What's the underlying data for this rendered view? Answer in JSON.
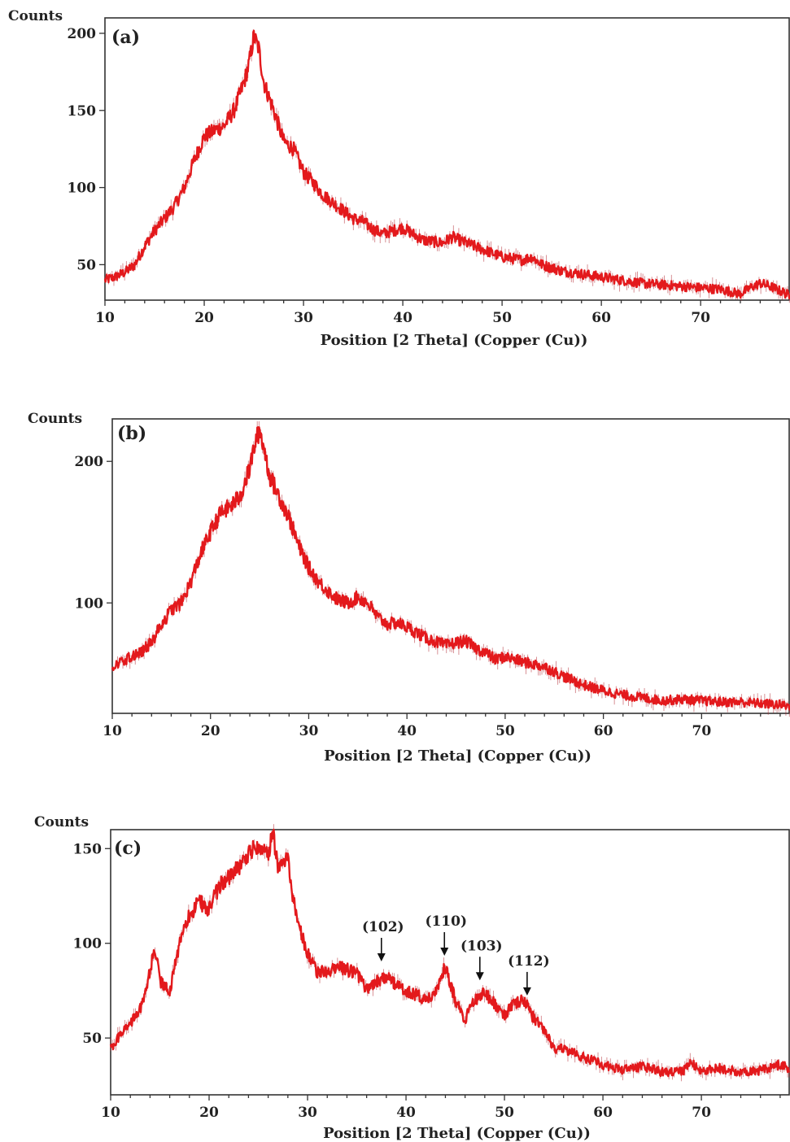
{
  "chart_data": [
    {
      "type": "line",
      "panel_label": "(a)",
      "ylabel": "Counts",
      "xlabel": "Position [2 Theta] (Copper (Cu))",
      "xlim": [
        10,
        79
      ],
      "ylim": [
        27,
        210
      ],
      "xticks": [
        10,
        20,
        30,
        40,
        50,
        60,
        70
      ],
      "yticks": [
        50,
        100,
        150,
        200
      ],
      "series": [
        {
          "x": [
            10,
            11,
            12,
            13,
            14,
            15,
            16,
            17,
            18,
            19,
            20,
            21,
            22,
            23,
            24,
            24.5,
            25,
            25.5,
            26,
            27,
            28,
            29,
            30,
            31,
            32,
            33,
            34,
            35,
            36,
            37,
            38,
            39,
            40,
            42,
            44,
            45,
            46,
            48,
            50,
            52,
            53,
            54,
            56,
            58,
            60,
            62,
            64,
            66,
            68,
            70,
            72,
            74,
            75,
            76,
            77,
            78,
            79
          ],
          "y": [
            40,
            42,
            45,
            50,
            62,
            72,
            80,
            88,
            100,
            118,
            133,
            137,
            140,
            150,
            168,
            180,
            198,
            190,
            168,
            150,
            130,
            125,
            110,
            103,
            95,
            90,
            85,
            80,
            78,
            73,
            70,
            72,
            74,
            66,
            64,
            68,
            65,
            60,
            55,
            53,
            55,
            50,
            46,
            44,
            42,
            40,
            38,
            37,
            36,
            35,
            34,
            31,
            35,
            38,
            36,
            33,
            30
          ]
        }
      ]
    },
    {
      "type": "line",
      "panel_label": "(b)",
      "ylabel": "Counts",
      "xlabel": "Position [2 Theta] (Copper (Cu))",
      "xlim": [
        10,
        79
      ],
      "ylim": [
        22,
        230
      ],
      "xticks": [
        10,
        20,
        30,
        40,
        50,
        60,
        70
      ],
      "yticks": [
        100,
        200
      ],
      "series": [
        {
          "x": [
            10,
            11,
            12,
            13,
            14,
            15,
            16,
            17,
            18,
            19,
            20,
            21,
            22,
            23,
            24,
            24.5,
            25,
            25.5,
            26,
            27,
            28,
            29,
            30,
            31,
            32,
            33,
            34,
            35,
            36,
            37,
            38,
            39,
            40,
            42,
            44,
            45,
            46,
            47,
            48,
            49,
            50,
            52,
            54,
            56,
            58,
            60,
            62,
            64,
            66,
            68,
            70,
            72,
            74,
            76,
            78,
            79
          ],
          "y": [
            55,
            58,
            62,
            66,
            72,
            85,
            95,
            100,
            115,
            135,
            150,
            163,
            168,
            175,
            195,
            212,
            222,
            208,
            190,
            175,
            160,
            140,
            125,
            115,
            108,
            102,
            100,
            104,
            100,
            90,
            85,
            86,
            83,
            75,
            70,
            72,
            73,
            68,
            65,
            60,
            62,
            58,
            55,
            48,
            42,
            38,
            35,
            33,
            31,
            32,
            31,
            30,
            30,
            29,
            28,
            27
          ]
        }
      ]
    },
    {
      "type": "line",
      "panel_label": "(c)",
      "ylabel": "Counts",
      "xlabel": "Position [2 Theta] (Copper (Cu))",
      "xlim": [
        10,
        79
      ],
      "ylim": [
        20,
        160
      ],
      "xticks": [
        10,
        20,
        30,
        40,
        50,
        60,
        70
      ],
      "yticks": [
        50,
        100,
        150
      ],
      "annotations": [
        {
          "label": "(102)",
          "x": 37.5,
          "y": 90
        },
        {
          "label": "(110)",
          "x": 43.9,
          "y": 93
        },
        {
          "label": "(103)",
          "x": 47.5,
          "y": 80
        },
        {
          "label": "(112)",
          "x": 52.3,
          "y": 72
        }
      ],
      "series": [
        {
          "x": [
            10,
            11,
            12,
            13,
            14,
            14.5,
            15,
            16,
            17,
            18,
            19,
            20,
            21,
            22,
            23,
            24,
            25,
            26,
            26.5,
            27,
            28,
            28.5,
            29,
            30,
            31,
            32,
            33,
            34,
            35,
            36,
            37,
            38,
            39,
            40,
            41,
            42,
            43,
            44,
            45,
            46,
            47,
            48,
            49,
            50,
            51,
            52,
            53,
            54,
            55,
            56,
            58,
            60,
            62,
            64,
            66,
            68,
            69,
            70,
            72,
            74,
            76,
            78,
            79
          ],
          "y": [
            45,
            52,
            58,
            65,
            85,
            98,
            80,
            75,
            100,
            115,
            122,
            118,
            130,
            135,
            140,
            148,
            152,
            148,
            158,
            140,
            145,
            125,
            110,
            95,
            85,
            85,
            88,
            86,
            84,
            75,
            80,
            82,
            78,
            75,
            73,
            70,
            75,
            88,
            70,
            60,
            70,
            74,
            68,
            62,
            68,
            70,
            60,
            55,
            45,
            44,
            40,
            36,
            33,
            35,
            32,
            32,
            37,
            33,
            34,
            32,
            33,
            36,
            34
          ]
        }
      ]
    }
  ]
}
